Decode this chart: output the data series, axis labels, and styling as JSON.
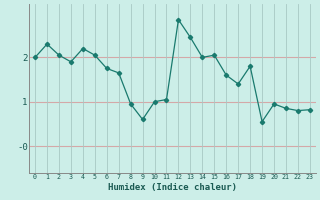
{
  "x": [
    0,
    1,
    2,
    3,
    4,
    5,
    6,
    7,
    8,
    9,
    10,
    11,
    12,
    13,
    14,
    15,
    16,
    17,
    18,
    19,
    20,
    21,
    22,
    23
  ],
  "y": [
    2.0,
    2.3,
    2.05,
    1.9,
    2.2,
    2.05,
    1.75,
    1.65,
    0.95,
    0.6,
    1.0,
    1.05,
    2.85,
    2.45,
    2.0,
    2.05,
    1.6,
    1.4,
    1.8,
    0.55,
    0.95,
    0.85,
    0.8,
    0.82
  ],
  "xlabel": "Humidex (Indice chaleur)",
  "line_color": "#1a7a6e",
  "marker_color": "#1a7a6e",
  "bg_color": "#cceee8",
  "hgrid_color": "#d4a8a8",
  "vgrid_color": "#a8c8c4",
  "ylim": [
    -0.6,
    3.2
  ],
  "xlim": [
    -0.5,
    23.5
  ],
  "yticks": [
    0,
    1,
    2
  ],
  "ytick_labels": [
    "-0",
    "1",
    "2"
  ]
}
